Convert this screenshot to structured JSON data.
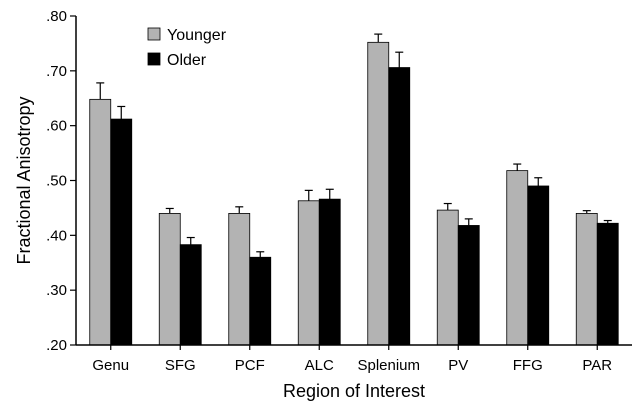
{
  "chart_data": {
    "type": "bar",
    "xlabel": "Region of Interest",
    "ylabel": "Fractional Anisotropy",
    "ylim": [
      0.2,
      0.8
    ],
    "yticks": [
      ".20",
      ".30",
      ".40",
      ".50",
      ".60",
      ".70",
      ".80"
    ],
    "ytick_values": [
      0.2,
      0.3,
      0.4,
      0.5,
      0.6,
      0.7,
      0.8
    ],
    "categories": [
      "Genu",
      "SFG",
      "PCF",
      "ALC",
      "Splenium",
      "PV",
      "FFG",
      "PAR"
    ],
    "series": [
      {
        "name": "Younger",
        "color": "#b3b3b3",
        "values": [
          0.648,
          0.44,
          0.44,
          0.463,
          0.752,
          0.446,
          0.518,
          0.44
        ],
        "errors": [
          0.03,
          0.009,
          0.012,
          0.019,
          0.015,
          0.012,
          0.012,
          0.005
        ]
      },
      {
        "name": "Older",
        "color": "#000000",
        "values": [
          0.612,
          0.383,
          0.36,
          0.466,
          0.706,
          0.418,
          0.49,
          0.422
        ],
        "errors": [
          0.023,
          0.013,
          0.01,
          0.018,
          0.028,
          0.012,
          0.015,
          0.005
        ]
      }
    ],
    "error_bars": true,
    "grid": false,
    "legend_position": "top-left"
  }
}
